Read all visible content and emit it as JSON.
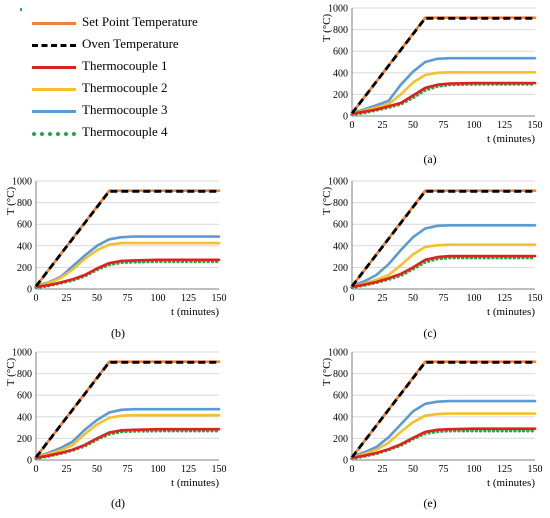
{
  "legend": {
    "items": [
      {
        "name": "Set Point Temperature",
        "color": "#f0823c",
        "style": "solid"
      },
      {
        "name": "Oven Temperature",
        "color": "#000000",
        "style": "dashed"
      },
      {
        "name": "Thermocouple 1",
        "color": "#e0201c",
        "style": "solid"
      },
      {
        "name": "Thermocouple 2",
        "color": "#f5c02a",
        "style": "solid"
      },
      {
        "name": "Thermocouple 3",
        "color": "#5a9bd5",
        "style": "solid"
      },
      {
        "name": "Thermocouple 4",
        "color": "#22a844",
        "style": "dotted"
      }
    ]
  },
  "chart_data": [
    {
      "panel": "(a)",
      "type": "line",
      "xlabel": "t (minutes)",
      "ylabel": "T (°C)",
      "xlim": [
        0,
        150
      ],
      "ylim": [
        0,
        1000
      ],
      "xticks": [
        0,
        25,
        50,
        75,
        100,
        125,
        150
      ],
      "yticks": [
        0,
        200,
        400,
        600,
        800,
        1000
      ],
      "grid": "horizontal",
      "legend": "shared-top-left",
      "series": [
        {
          "name": "Set Point Temperature",
          "x": [
            0,
            60,
            150
          ],
          "y": [
            25,
            910,
            910
          ]
        },
        {
          "name": "Oven Temperature",
          "x": [
            0,
            60,
            150
          ],
          "y": [
            25,
            905,
            905
          ]
        },
        {
          "name": "Thermocouple 1",
          "x": [
            0,
            10,
            20,
            30,
            40,
            50,
            60,
            70,
            80,
            100,
            125,
            150
          ],
          "y": [
            20,
            40,
            60,
            90,
            120,
            190,
            260,
            290,
            300,
            305,
            305,
            305
          ]
        },
        {
          "name": "Thermocouple 2",
          "x": [
            0,
            10,
            20,
            30,
            40,
            50,
            60,
            70,
            80,
            100,
            125,
            150
          ],
          "y": [
            25,
            50,
            80,
            110,
            200,
            310,
            380,
            400,
            405,
            405,
            405,
            405
          ]
        },
        {
          "name": "Thermocouple 3",
          "x": [
            0,
            10,
            20,
            30,
            40,
            50,
            60,
            70,
            80,
            100,
            125,
            150
          ],
          "y": [
            30,
            60,
            100,
            140,
            290,
            410,
            500,
            530,
            535,
            535,
            535,
            535
          ]
        },
        {
          "name": "Thermocouple 4",
          "x": [
            0,
            10,
            20,
            30,
            40,
            50,
            60,
            70,
            80,
            100,
            125,
            150
          ],
          "y": [
            15,
            30,
            55,
            80,
            110,
            170,
            240,
            275,
            290,
            295,
            295,
            295
          ]
        }
      ]
    },
    {
      "panel": "(b)",
      "type": "line",
      "xlabel": "t (minutes)",
      "ylabel": "T (°C)",
      "xlim": [
        0,
        150
      ],
      "ylim": [
        0,
        1000
      ],
      "xticks": [
        0,
        25,
        50,
        75,
        100,
        125,
        150
      ],
      "yticks": [
        0,
        200,
        400,
        600,
        800,
        1000
      ],
      "grid": "horizontal",
      "series": [
        {
          "name": "Set Point Temperature",
          "x": [
            0,
            60,
            150
          ],
          "y": [
            25,
            910,
            910
          ]
        },
        {
          "name": "Oven Temperature",
          "x": [
            0,
            60,
            150
          ],
          "y": [
            25,
            905,
            905
          ]
        },
        {
          "name": "Thermocouple 1",
          "x": [
            0,
            10,
            20,
            30,
            40,
            50,
            60,
            70,
            80,
            100,
            125,
            150
          ],
          "y": [
            20,
            35,
            60,
            90,
            130,
            190,
            240,
            260,
            265,
            270,
            270,
            270
          ]
        },
        {
          "name": "Thermocouple 2",
          "x": [
            0,
            10,
            20,
            30,
            40,
            50,
            60,
            70,
            80,
            100,
            125,
            150
          ],
          "y": [
            25,
            55,
            100,
            180,
            280,
            360,
            410,
            425,
            425,
            425,
            425,
            425
          ]
        },
        {
          "name": "Thermocouple 3",
          "x": [
            0,
            10,
            20,
            30,
            40,
            50,
            60,
            70,
            80,
            100,
            125,
            150
          ],
          "y": [
            30,
            60,
            110,
            210,
            310,
            400,
            460,
            480,
            485,
            485,
            485,
            485
          ]
        },
        {
          "name": "Thermocouple 4",
          "x": [
            0,
            10,
            20,
            30,
            40,
            50,
            60,
            70,
            80,
            100,
            125,
            150
          ],
          "y": [
            15,
            30,
            55,
            80,
            120,
            180,
            225,
            245,
            250,
            255,
            255,
            255
          ]
        }
      ]
    },
    {
      "panel": "(c)",
      "type": "line",
      "xlabel": "t (minutes)",
      "ylabel": "T (°C)",
      "xlim": [
        0,
        150
      ],
      "ylim": [
        0,
        1000
      ],
      "xticks": [
        0,
        25,
        50,
        75,
        100,
        125,
        150
      ],
      "yticks": [
        0,
        200,
        400,
        600,
        800,
        1000
      ],
      "grid": "horizontal",
      "series": [
        {
          "name": "Set Point Temperature",
          "x": [
            0,
            60,
            150
          ],
          "y": [
            25,
            910,
            910
          ]
        },
        {
          "name": "Oven Temperature",
          "x": [
            0,
            60,
            150
          ],
          "y": [
            25,
            905,
            905
          ]
        },
        {
          "name": "Thermocouple 1",
          "x": [
            0,
            10,
            20,
            30,
            40,
            50,
            60,
            70,
            80,
            100,
            125,
            150
          ],
          "y": [
            20,
            40,
            65,
            100,
            140,
            200,
            270,
            295,
            305,
            305,
            305,
            305
          ]
        },
        {
          "name": "Thermocouple 2",
          "x": [
            0,
            10,
            20,
            30,
            40,
            50,
            60,
            70,
            80,
            100,
            125,
            150
          ],
          "y": [
            25,
            50,
            85,
            130,
            220,
            320,
            390,
            405,
            410,
            410,
            410,
            410
          ]
        },
        {
          "name": "Thermocouple 3",
          "x": [
            0,
            10,
            20,
            30,
            40,
            50,
            60,
            70,
            80,
            100,
            125,
            150
          ],
          "y": [
            30,
            70,
            130,
            230,
            360,
            480,
            560,
            585,
            590,
            590,
            590,
            590
          ]
        },
        {
          "name": "Thermocouple 4",
          "x": [
            0,
            10,
            20,
            30,
            40,
            50,
            60,
            70,
            80,
            100,
            125,
            150
          ],
          "y": [
            15,
            35,
            60,
            90,
            125,
            185,
            250,
            280,
            290,
            290,
            290,
            290
          ]
        }
      ]
    },
    {
      "panel": "(d)",
      "type": "line",
      "xlabel": "t (minutes)",
      "ylabel": "T (°C)",
      "xlim": [
        0,
        150
      ],
      "ylim": [
        0,
        1000
      ],
      "xticks": [
        0,
        25,
        50,
        75,
        100,
        125,
        150
      ],
      "yticks": [
        0,
        200,
        400,
        600,
        800,
        1000
      ],
      "grid": "horizontal",
      "series": [
        {
          "name": "Set Point Temperature",
          "x": [
            0,
            60,
            150
          ],
          "y": [
            25,
            910,
            910
          ]
        },
        {
          "name": "Oven Temperature",
          "x": [
            0,
            60,
            150
          ],
          "y": [
            25,
            905,
            905
          ]
        },
        {
          "name": "Thermocouple 1",
          "x": [
            0,
            10,
            20,
            30,
            40,
            50,
            60,
            70,
            80,
            100,
            125,
            150
          ],
          "y": [
            20,
            40,
            65,
            95,
            140,
            200,
            255,
            275,
            280,
            285,
            285,
            285
          ]
        },
        {
          "name": "Thermocouple 2",
          "x": [
            0,
            10,
            20,
            30,
            40,
            50,
            60,
            70,
            80,
            100,
            125,
            150
          ],
          "y": [
            25,
            55,
            90,
            140,
            240,
            330,
            390,
            410,
            415,
            415,
            415,
            415
          ]
        },
        {
          "name": "Thermocouple 3",
          "x": [
            0,
            10,
            20,
            30,
            40,
            50,
            60,
            70,
            80,
            100,
            125,
            150
          ],
          "y": [
            30,
            65,
            110,
            170,
            280,
            370,
            440,
            465,
            470,
            470,
            470,
            470
          ]
        },
        {
          "name": "Thermocouple 4",
          "x": [
            0,
            10,
            20,
            30,
            40,
            50,
            60,
            70,
            80,
            100,
            125,
            150
          ],
          "y": [
            15,
            35,
            60,
            90,
            130,
            190,
            240,
            262,
            268,
            270,
            270,
            270
          ]
        }
      ]
    },
    {
      "panel": "(e)",
      "type": "line",
      "xlabel": "t (minutes)",
      "ylabel": "T (°C)",
      "xlim": [
        0,
        150
      ],
      "ylim": [
        0,
        1000
      ],
      "xticks": [
        0,
        25,
        50,
        75,
        100,
        125,
        150
      ],
      "yticks": [
        0,
        200,
        400,
        600,
        800,
        1000
      ],
      "grid": "horizontal",
      "series": [
        {
          "name": "Set Point Temperature",
          "x": [
            0,
            60,
            150
          ],
          "y": [
            25,
            910,
            910
          ]
        },
        {
          "name": "Oven Temperature",
          "x": [
            0,
            60,
            150
          ],
          "y": [
            25,
            905,
            905
          ]
        },
        {
          "name": "Thermocouple 1",
          "x": [
            0,
            10,
            20,
            30,
            40,
            50,
            60,
            70,
            80,
            100,
            125,
            150
          ],
          "y": [
            20,
            40,
            65,
            100,
            145,
            205,
            260,
            280,
            285,
            290,
            290,
            290
          ]
        },
        {
          "name": "Thermocouple 2",
          "x": [
            0,
            10,
            20,
            30,
            40,
            50,
            60,
            70,
            80,
            100,
            125,
            150
          ],
          "y": [
            25,
            55,
            95,
            160,
            260,
            350,
            410,
            425,
            430,
            430,
            430,
            430
          ]
        },
        {
          "name": "Thermocouple 3",
          "x": [
            0,
            10,
            20,
            30,
            40,
            50,
            60,
            70,
            80,
            100,
            125,
            150
          ],
          "y": [
            30,
            70,
            120,
            210,
            330,
            450,
            520,
            540,
            545,
            545,
            545,
            545
          ]
        },
        {
          "name": "Thermocouple 4",
          "x": [
            0,
            10,
            20,
            30,
            40,
            50,
            60,
            70,
            80,
            100,
            125,
            150
          ],
          "y": [
            15,
            35,
            60,
            95,
            135,
            195,
            245,
            265,
            270,
            270,
            270,
            270
          ]
        }
      ]
    }
  ]
}
